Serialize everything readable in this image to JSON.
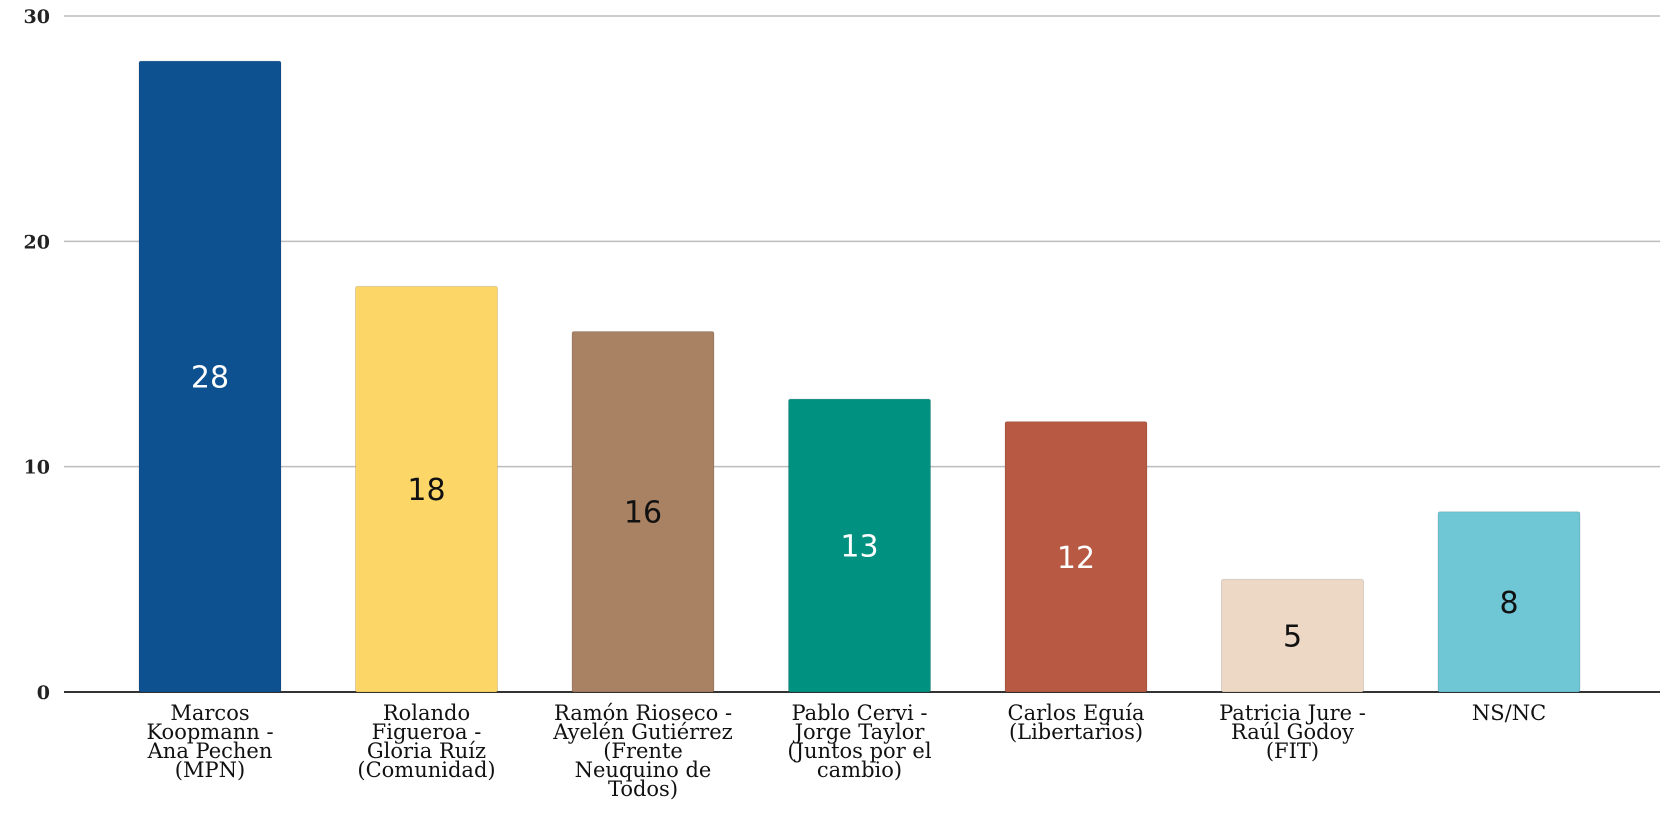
{
  "chart_data": {
    "type": "bar",
    "title": "",
    "xlabel": "",
    "ylabel": "",
    "ylim": [
      0,
      30
    ],
    "yticks": [
      0,
      10,
      20,
      30
    ],
    "grid": true,
    "categories": [
      [
        "Marcos",
        "Koopmann -",
        "Ana Pechen",
        "(MPN)"
      ],
      [
        "Rolando",
        "Figueroa -",
        "Gloria Ruíz",
        "(Comunidad)"
      ],
      [
        "Ramón Rioseco -",
        "Ayelén Gutiérrez",
        "(Frente",
        "Neuquino de",
        "Todos)"
      ],
      [
        "Pablo Cervi -",
        "Jorge Taylor",
        "(Juntos por el",
        "cambio)"
      ],
      [
        "Carlos Eguía",
        "(Libertarios)"
      ],
      [
        "Patricia Jure -",
        "Raúl Godoy",
        "(FIT)"
      ],
      [
        "NS/NC"
      ]
    ],
    "values": [
      28,
      18,
      16,
      13,
      12,
      5,
      8
    ],
    "colors": [
      "#0e5191",
      "#fcd767",
      "#a98163",
      "#009180",
      "#b75943",
      "#ecd8c4",
      "#6fc7d5"
    ],
    "label_colors": [
      "#ffffff",
      "#111111",
      "#111111",
      "#ffffff",
      "#ffffff",
      "#111111",
      "#111111"
    ]
  }
}
